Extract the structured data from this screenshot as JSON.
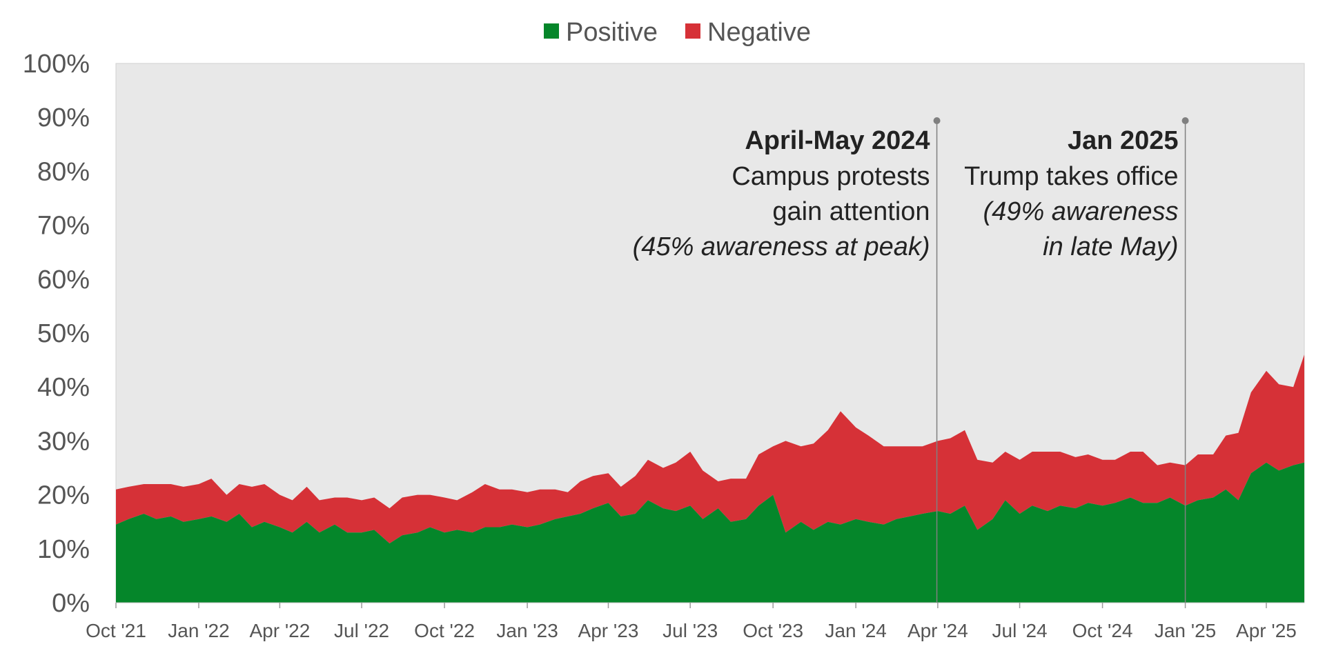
{
  "colors": {
    "positive": "#05862a",
    "negative": "#d63137",
    "plot_bg": "#e8e8e8",
    "axis_text": "#555555",
    "annotation_text": "#222222",
    "marker": "#808080"
  },
  "legend": [
    {
      "label": "Positive",
      "color": "#05862a"
    },
    {
      "label": "Negative",
      "color": "#d63137"
    }
  ],
  "annotations": [
    {
      "title": "April-May 2024",
      "lines": [
        "Campus protests",
        "gain attention",
        "(45% awareness at peak)"
      ],
      "italic_from_line": 2,
      "x_date": "2024-03-31"
    },
    {
      "title": "Jan 2025",
      "lines": [
        "Trump takes office",
        "(49% awareness",
        "in late May)"
      ],
      "italic_from_line": 1,
      "x_date": "2025-01-01"
    }
  ],
  "chart_data": {
    "type": "area",
    "stacked": true,
    "title": "",
    "xlabel": "",
    "ylabel": "",
    "ylim": [
      0,
      100
    ],
    "y_ticks": [
      "0%",
      "10%",
      "20%",
      "30%",
      "40%",
      "50%",
      "60%",
      "70%",
      "80%",
      "90%",
      "100%"
    ],
    "x_ticks": [
      {
        "label": "Oct '21",
        "date": "2021-10-01"
      },
      {
        "label": "Jan '22",
        "date": "2022-01-01"
      },
      {
        "label": "Apr '22",
        "date": "2022-04-01"
      },
      {
        "label": "Jul '22",
        "date": "2022-07-01"
      },
      {
        "label": "Oct '22",
        "date": "2022-10-01"
      },
      {
        "label": "Jan '23",
        "date": "2023-01-01"
      },
      {
        "label": "Apr '23",
        "date": "2023-04-01"
      },
      {
        "label": "Jul '23",
        "date": "2023-07-01"
      },
      {
        "label": "Oct '23",
        "date": "2023-10-01"
      },
      {
        "label": "Jan '24",
        "date": "2024-01-01"
      },
      {
        "label": "Apr '24",
        "date": "2024-04-01"
      },
      {
        "label": "Jul '24",
        "date": "2024-07-01"
      },
      {
        "label": "Oct '24",
        "date": "2024-10-01"
      },
      {
        "label": "Jan '25",
        "date": "2025-01-01"
      },
      {
        "label": "Apr '25",
        "date": "2025-04-01"
      }
    ],
    "x": [
      "2021-10-01",
      "2021-10-15",
      "2021-11-01",
      "2021-11-15",
      "2021-12-01",
      "2021-12-15",
      "2022-01-01",
      "2022-01-15",
      "2022-02-01",
      "2022-02-15",
      "2022-03-01",
      "2022-03-15",
      "2022-04-01",
      "2022-04-15",
      "2022-05-01",
      "2022-05-15",
      "2022-06-01",
      "2022-06-15",
      "2022-07-01",
      "2022-07-15",
      "2022-08-01",
      "2022-08-15",
      "2022-09-01",
      "2022-09-15",
      "2022-10-01",
      "2022-10-15",
      "2022-11-01",
      "2022-11-15",
      "2022-12-01",
      "2022-12-15",
      "2023-01-01",
      "2023-01-15",
      "2023-02-01",
      "2023-02-15",
      "2023-03-01",
      "2023-03-15",
      "2023-04-01",
      "2023-04-15",
      "2023-05-01",
      "2023-05-15",
      "2023-06-01",
      "2023-06-15",
      "2023-07-01",
      "2023-07-15",
      "2023-08-01",
      "2023-08-15",
      "2023-09-01",
      "2023-09-15",
      "2023-10-01",
      "2023-10-15",
      "2023-11-01",
      "2023-11-15",
      "2023-12-01",
      "2023-12-15",
      "2024-01-01",
      "2024-01-15",
      "2024-02-01",
      "2024-02-15",
      "2024-03-01",
      "2024-03-15",
      "2024-04-01",
      "2024-04-15",
      "2024-05-01",
      "2024-05-15",
      "2024-06-01",
      "2024-06-15",
      "2024-07-01",
      "2024-07-15",
      "2024-08-01",
      "2024-08-15",
      "2024-09-01",
      "2024-09-15",
      "2024-10-01",
      "2024-10-15",
      "2024-11-01",
      "2024-11-15",
      "2024-12-01",
      "2024-12-15",
      "2025-01-01",
      "2025-01-15",
      "2025-02-01",
      "2025-02-15",
      "2025-03-01",
      "2025-03-15",
      "2025-04-01",
      "2025-04-15",
      "2025-05-01",
      "2025-05-15"
    ],
    "series": [
      {
        "name": "Positive",
        "values": [
          14.5,
          15.5,
          16.5,
          15.5,
          16,
          15,
          15.5,
          16,
          15,
          16.5,
          14,
          15,
          14,
          13,
          15,
          13,
          14.5,
          13,
          13,
          13.5,
          11,
          12.5,
          13,
          14,
          13,
          13.5,
          13,
          14,
          14,
          14.5,
          14,
          14.5,
          15.5,
          16,
          16.5,
          17.5,
          18.5,
          16,
          16.5,
          19,
          17.5,
          17,
          18,
          15.5,
          17.5,
          15,
          15.5,
          18,
          20,
          13,
          15,
          13.5,
          15,
          14.5,
          15.5,
          15,
          14.5,
          15.5,
          16,
          16.5,
          17,
          16.5,
          18,
          13.5,
          15.5,
          19,
          16.5,
          18,
          17,
          18,
          17.5,
          18.5,
          18,
          18.5,
          19.5,
          18.5,
          18.5,
          19.5,
          18,
          19,
          19.5,
          21,
          19,
          24,
          26,
          24.5,
          25.5,
          26
        ]
      },
      {
        "name": "Negative",
        "values": [
          6.5,
          6,
          5.5,
          6.5,
          6,
          6.5,
          6.5,
          7,
          5,
          5.5,
          7.5,
          7,
          6,
          6,
          6.5,
          6,
          5,
          6.5,
          6,
          6,
          6.5,
          7,
          7,
          6,
          6.5,
          5.5,
          7.5,
          8,
          7,
          6.5,
          6.5,
          6.5,
          5.5,
          4.5,
          6,
          6,
          5.5,
          5.5,
          7,
          7.5,
          7.5,
          9,
          10,
          9,
          5,
          8,
          7.5,
          9.5,
          9,
          17,
          14,
          16,
          17,
          21,
          17,
          16,
          14.5,
          13.5,
          13,
          12.5,
          13,
          14,
          14,
          13,
          10.5,
          9,
          10,
          10,
          11,
          10,
          9.5,
          9,
          8.5,
          8,
          8.5,
          9.5,
          7,
          6.5,
          7.5,
          8.5,
          8,
          10,
          12.5,
          15,
          17,
          16,
          14.5,
          20
        ]
      }
    ],
    "legend_position": "top-center",
    "grid": false
  }
}
